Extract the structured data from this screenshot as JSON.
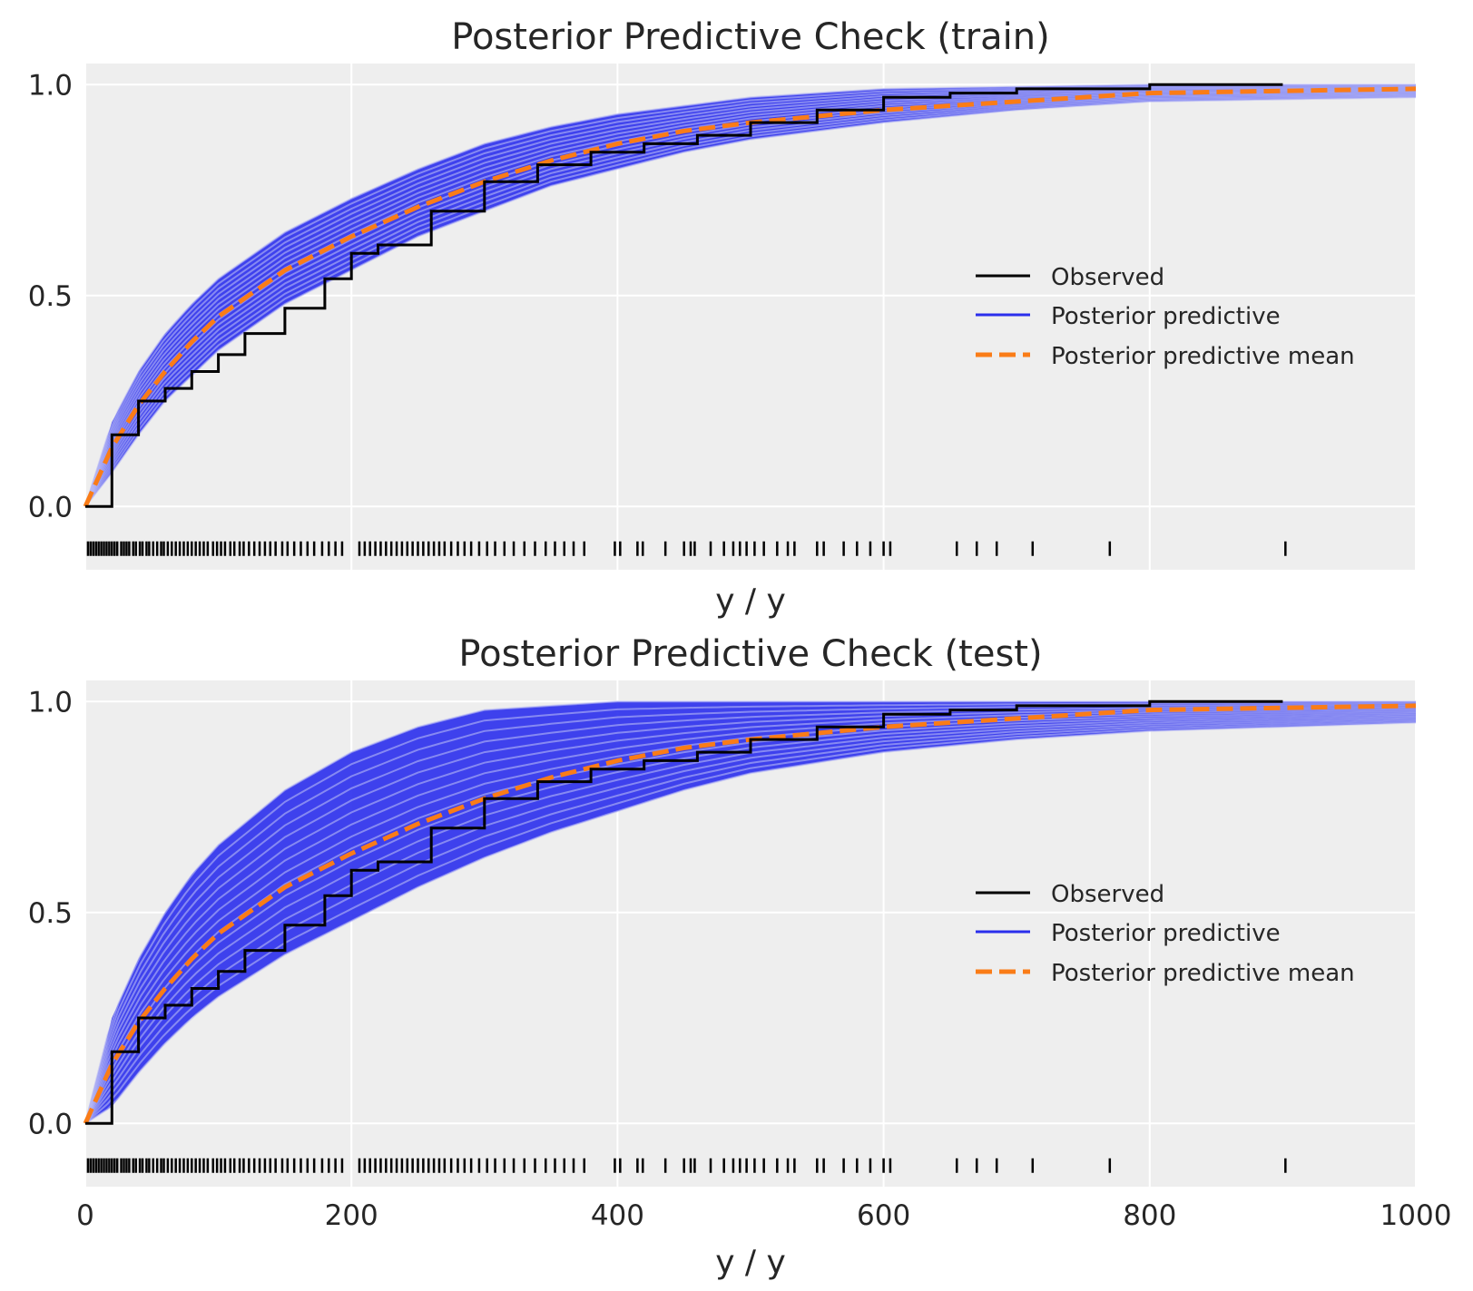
{
  "chart_data": [
    {
      "type": "line",
      "title": "Posterior Predictive Check (train)",
      "xlabel": "y / y",
      "ylabel": "",
      "xlim": [
        0,
        1000
      ],
      "ylim": [
        -0.15,
        1.05
      ],
      "yticks": [
        0.0,
        0.5,
        1.0
      ],
      "ytick_labels": [
        "0.0",
        "0.5",
        "1.0"
      ],
      "xticks": [
        0,
        200,
        400,
        600,
        800,
        1000
      ],
      "xtick_labels": [],
      "grid": true,
      "legend_location": "center-right",
      "legend": [
        "Observed",
        "Posterior predictive",
        "Posterior predictive mean"
      ],
      "colors": {
        "observed": "#000000",
        "predictive": "#2a2eec",
        "mean": "#fa7c17",
        "background": "#eeeeee"
      },
      "series": [
        {
          "name": "Observed",
          "style": "step",
          "x": [
            0,
            20,
            40,
            60,
            80,
            100,
            120,
            150,
            180,
            200,
            220,
            260,
            300,
            340,
            380,
            420,
            460,
            500,
            550,
            600,
            650,
            700,
            800,
            900
          ],
          "y": [
            0,
            0.17,
            0.25,
            0.28,
            0.32,
            0.36,
            0.41,
            0.47,
            0.54,
            0.6,
            0.62,
            0.7,
            0.77,
            0.81,
            0.84,
            0.86,
            0.88,
            0.91,
            0.94,
            0.97,
            0.98,
            0.99,
            1.0,
            1.0
          ]
        },
        {
          "name": "Posterior predictive mean",
          "style": "dashed",
          "x": [
            0,
            20,
            40,
            60,
            80,
            100,
            150,
            200,
            250,
            300,
            350,
            400,
            450,
            500,
            600,
            700,
            800,
            900,
            1000
          ],
          "y": [
            0,
            0.14,
            0.24,
            0.32,
            0.39,
            0.45,
            0.56,
            0.64,
            0.71,
            0.77,
            0.82,
            0.86,
            0.89,
            0.91,
            0.94,
            0.96,
            0.98,
            0.985,
            0.99
          ]
        },
        {
          "name": "Posterior predictive",
          "style": "band",
          "x": [
            0,
            20,
            40,
            60,
            80,
            100,
            150,
            200,
            250,
            300,
            350,
            400,
            450,
            500,
            600,
            700,
            800,
            900,
            1000
          ],
          "lower": [
            0,
            0.08,
            0.17,
            0.25,
            0.31,
            0.37,
            0.48,
            0.56,
            0.64,
            0.7,
            0.76,
            0.8,
            0.84,
            0.87,
            0.91,
            0.94,
            0.96,
            0.965,
            0.97
          ],
          "upper": [
            0,
            0.2,
            0.32,
            0.41,
            0.48,
            0.54,
            0.65,
            0.73,
            0.8,
            0.86,
            0.9,
            0.93,
            0.95,
            0.97,
            0.99,
            0.995,
            1.0,
            1.0,
            1.0
          ]
        }
      ],
      "rug": [
        2,
        4,
        6,
        8,
        10,
        12,
        14,
        16,
        18,
        20,
        22,
        24,
        27,
        29,
        31,
        33,
        36,
        38,
        41,
        43,
        46,
        48,
        51,
        54,
        57,
        59,
        62,
        65,
        68,
        71,
        74,
        77,
        80,
        83,
        86,
        89,
        92,
        96,
        99,
        102,
        105,
        109,
        112,
        116,
        119,
        123,
        127,
        131,
        135,
        139,
        143,
        148,
        152,
        157,
        162,
        167,
        172,
        178,
        183,
        188,
        193,
        206,
        210,
        214,
        218,
        222,
        226,
        230,
        234,
        238,
        242,
        246,
        250,
        254,
        258,
        262,
        266,
        270,
        275,
        280,
        285,
        290,
        296,
        302,
        308,
        315,
        322,
        330,
        338,
        346,
        353,
        360,
        367,
        375,
        398,
        402,
        415,
        419,
        436,
        450,
        455,
        458,
        470,
        480,
        487,
        492,
        497,
        503,
        510,
        520,
        528,
        533,
        550,
        555,
        570,
        580,
        590,
        600,
        605,
        655,
        670,
        685,
        712,
        770,
        902
      ]
    },
    {
      "type": "line",
      "title": "Posterior Predictive Check (test)",
      "xlabel": "y / y",
      "ylabel": "",
      "xlim": [
        0,
        1000
      ],
      "ylim": [
        -0.15,
        1.05
      ],
      "yticks": [
        0.0,
        0.5,
        1.0
      ],
      "ytick_labels": [
        "0.0",
        "0.5",
        "1.0"
      ],
      "xticks": [
        0,
        200,
        400,
        600,
        800,
        1000
      ],
      "xtick_labels": [
        "0",
        "200",
        "400",
        "600",
        "800",
        "1000"
      ],
      "grid": true,
      "legend_location": "center-right",
      "legend": [
        "Observed",
        "Posterior predictive",
        "Posterior predictive mean"
      ],
      "colors": {
        "observed": "#000000",
        "predictive": "#2a2eec",
        "mean": "#fa7c17",
        "background": "#eeeeee"
      },
      "series": [
        {
          "name": "Observed",
          "style": "step",
          "x": [
            0,
            20,
            40,
            60,
            80,
            100,
            120,
            150,
            180,
            200,
            220,
            260,
            300,
            340,
            380,
            420,
            460,
            500,
            550,
            600,
            650,
            700,
            800,
            900
          ],
          "y": [
            0,
            0.17,
            0.25,
            0.28,
            0.32,
            0.36,
            0.41,
            0.47,
            0.54,
            0.6,
            0.62,
            0.7,
            0.77,
            0.81,
            0.84,
            0.86,
            0.88,
            0.91,
            0.94,
            0.97,
            0.98,
            0.99,
            1.0,
            1.0
          ]
        },
        {
          "name": "Posterior predictive mean",
          "style": "dashed",
          "x": [
            0,
            20,
            40,
            60,
            80,
            100,
            150,
            200,
            250,
            300,
            350,
            400,
            450,
            500,
            600,
            700,
            800,
            900,
            1000
          ],
          "y": [
            0,
            0.14,
            0.24,
            0.32,
            0.39,
            0.45,
            0.56,
            0.64,
            0.71,
            0.77,
            0.82,
            0.86,
            0.89,
            0.91,
            0.94,
            0.96,
            0.98,
            0.985,
            0.99
          ]
        },
        {
          "name": "Posterior predictive",
          "style": "band",
          "x": [
            0,
            20,
            40,
            60,
            80,
            100,
            150,
            200,
            250,
            300,
            350,
            400,
            450,
            500,
            600,
            700,
            800,
            900,
            1000
          ],
          "lower": [
            0,
            0.04,
            0.12,
            0.19,
            0.25,
            0.3,
            0.4,
            0.48,
            0.56,
            0.63,
            0.69,
            0.74,
            0.79,
            0.83,
            0.88,
            0.91,
            0.93,
            0.94,
            0.95
          ],
          "upper": [
            0,
            0.25,
            0.39,
            0.5,
            0.59,
            0.66,
            0.79,
            0.88,
            0.94,
            0.98,
            0.99,
            1.0,
            1.0,
            1.0,
            1.0,
            1.0,
            1.0,
            1.0,
            1.0
          ]
        }
      ],
      "rug": [
        2,
        4,
        6,
        8,
        10,
        12,
        14,
        16,
        18,
        20,
        22,
        24,
        27,
        29,
        31,
        33,
        36,
        38,
        41,
        43,
        46,
        48,
        51,
        54,
        57,
        59,
        62,
        65,
        68,
        71,
        74,
        77,
        80,
        83,
        86,
        89,
        92,
        96,
        99,
        102,
        105,
        109,
        112,
        116,
        119,
        123,
        127,
        131,
        135,
        139,
        143,
        148,
        152,
        157,
        162,
        167,
        172,
        178,
        183,
        188,
        193,
        206,
        210,
        214,
        218,
        222,
        226,
        230,
        234,
        238,
        242,
        246,
        250,
        254,
        258,
        262,
        266,
        270,
        275,
        280,
        285,
        290,
        296,
        302,
        308,
        315,
        322,
        330,
        338,
        346,
        353,
        360,
        367,
        375,
        398,
        402,
        415,
        419,
        436,
        450,
        455,
        458,
        470,
        480,
        487,
        492,
        497,
        503,
        510,
        520,
        528,
        533,
        550,
        555,
        570,
        580,
        590,
        600,
        605,
        655,
        670,
        685,
        712,
        770,
        902
      ]
    }
  ]
}
